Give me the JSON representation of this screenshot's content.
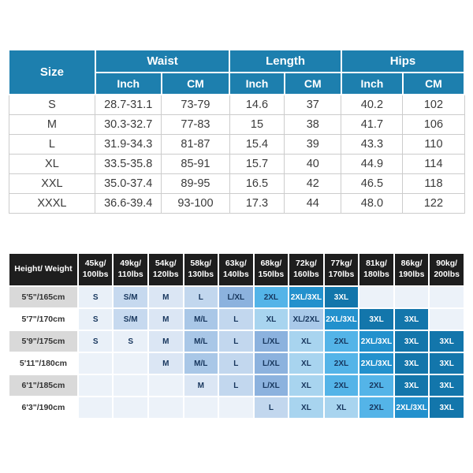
{
  "page": {
    "background": "#ffffff"
  },
  "size_table": {
    "size_label": "Size",
    "groups": [
      "Waist",
      "Length",
      "Hips"
    ],
    "units": [
      "Inch",
      "CM",
      "Inch",
      "CM",
      "Inch",
      "CM"
    ],
    "rows": [
      {
        "size": "S",
        "values": [
          "28.7-31.1",
          "73-79",
          "14.6",
          "37",
          "40.2",
          "102"
        ]
      },
      {
        "size": "M",
        "values": [
          "30.3-32.7",
          "77-83",
          "15",
          "38",
          "41.7",
          "106"
        ]
      },
      {
        "size": "L",
        "values": [
          "31.9-34.3",
          "81-87",
          "15.4",
          "39",
          "43.3",
          "110"
        ]
      },
      {
        "size": "XL",
        "values": [
          "33.5-35.8",
          "85-91",
          "15.7",
          "40",
          "44.9",
          "114"
        ]
      },
      {
        "size": "XXL",
        "values": [
          "35.0-37.4",
          "89-95",
          "16.5",
          "42",
          "46.5",
          "118"
        ]
      },
      {
        "size": "XXXL",
        "values": [
          "36.6-39.4",
          "93-100",
          "17.3",
          "44",
          "48.0",
          "122"
        ]
      }
    ],
    "colors": {
      "header_bg": "#1d7fae",
      "header_text": "#ffffff",
      "body_text": "#3b3b3b",
      "grid_line": "#cccccc"
    }
  },
  "fit_table": {
    "corner_label": "Height/ Weight",
    "weight_headers": [
      "45kg/\n100lbs",
      "49kg/\n110lbs",
      "54kg/\n120lbs",
      "58kg/\n130lbs",
      "63kg/\n140lbs",
      "68kg/\n150lbs",
      "72kg/\n160lbs",
      "77kg/\n170lbs",
      "81kg/\n180lbs",
      "86kg/\n190lbs",
      "90kg/\n200lbs"
    ],
    "rows": [
      {
        "height": "5'5\"/165cm",
        "cells": [
          "S",
          "S/M",
          "M",
          "L",
          "L/XL",
          "2XL",
          "2XL/3XL",
          "3XL",
          "",
          "",
          ""
        ]
      },
      {
        "height": "5'7\"/170cm",
        "cells": [
          "S",
          "S/M",
          "M",
          "M/L",
          "L",
          "XL",
          "XL/2XL",
          "2XL/3XL",
          "3XL",
          "3XL",
          ""
        ]
      },
      {
        "height": "5'9\"/175cm",
        "cells": [
          "S",
          "S",
          "M",
          "M/L",
          "L",
          "L/XL",
          "XL",
          "2XL",
          "2XL/3XL",
          "3XL",
          "3XL"
        ]
      },
      {
        "height": "5'11\"/180cm",
        "cells": [
          "",
          "",
          "M",
          "M/L",
          "L",
          "L/XL",
          "XL",
          "2XL",
          "2XL/3XL",
          "3XL",
          "3XL"
        ]
      },
      {
        "height": "6'1\"/185cm",
        "cells": [
          "",
          "",
          "",
          "M",
          "L",
          "L/XL",
          "XL",
          "2XL",
          "2XL",
          "3XL",
          "3XL"
        ]
      },
      {
        "height": "6'3\"/190cm",
        "cells": [
          "",
          "",
          "",
          "",
          "",
          "L",
          "XL",
          "XL",
          "2XL",
          "2XL/3XL",
          "3XL"
        ]
      }
    ],
    "size_colors": {
      "S": "#e9f0f8",
      "S/M": "#c6d9ef",
      "M": "#dbe6f4",
      "M/L": "#a9c7e7",
      "L": "#c2d7ee",
      "L/XL": "#8cb2de",
      "XL": "#a8d4ef",
      "XL/2XL": "#a9c9e9",
      "2XL": "#54b4e8",
      "2XL/3XL": "#2391cd",
      "3XL": "#1376ab"
    },
    "empty_cell_color": "#ecf2f9",
    "white_text_sizes": [
      "2XL/3XL",
      "3XL"
    ],
    "colors": {
      "header_bg": "#1e1e1e",
      "header_text": "#ffffff",
      "row_label_odd_bg": "#d9d9d9",
      "row_label_even_bg": "#ffffff",
      "row_label_text": "#333333",
      "cell_text": "#17365d"
    }
  }
}
